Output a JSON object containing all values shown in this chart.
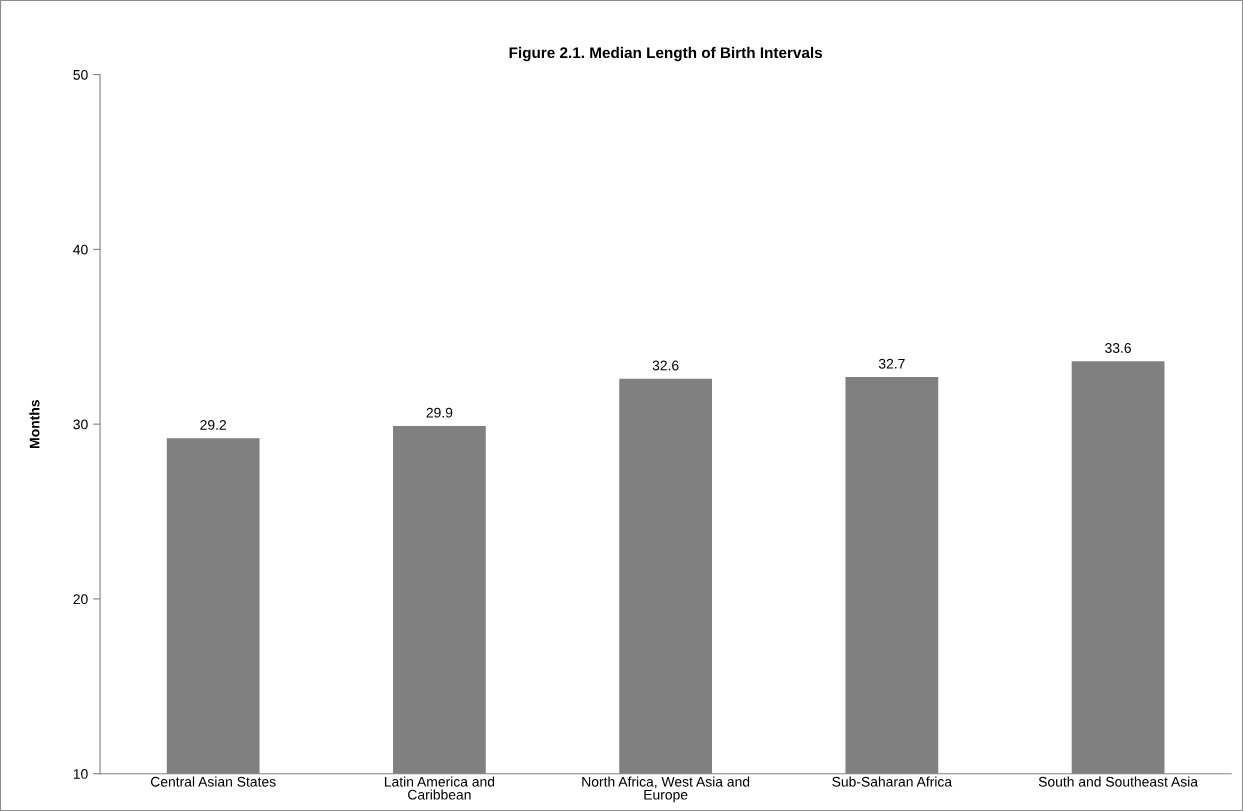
{
  "chart_data": {
    "type": "bar",
    "title": "Figure 2.1. Median Length of Birth Intervals",
    "ylabel": "Months",
    "categories": [
      "Central Asian States",
      "Latin America and\nCaribbean",
      "North Africa, West Asia and\nEurope",
      "Sub-Saharan Africa",
      "South and Southeast Asia"
    ],
    "values": [
      29.2,
      29.9,
      32.6,
      32.7,
      33.6
    ],
    "color": "#808080",
    "ylim": [
      10,
      50
    ],
    "yticks": [
      10,
      20,
      30,
      40,
      50
    ],
    "grid": false,
    "data_labels": true
  }
}
